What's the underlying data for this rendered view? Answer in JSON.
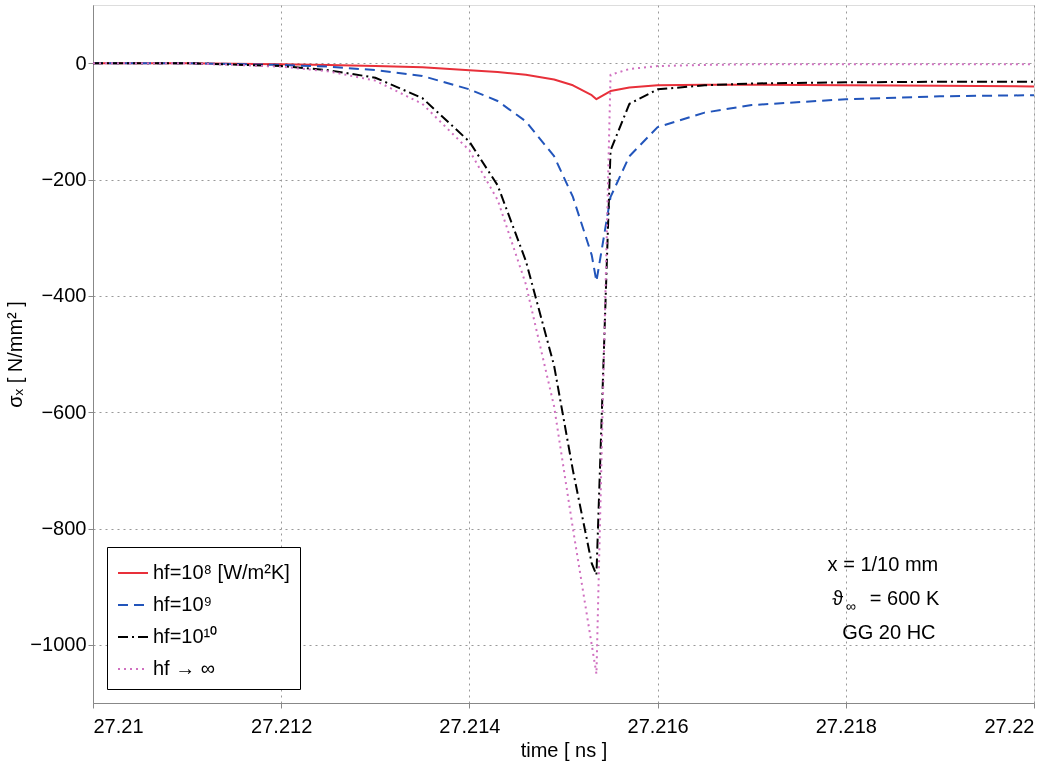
{
  "chart_data": {
    "type": "line",
    "xlabel": "time [ ns ]",
    "ylabel": "σₓ [ N/mm² ]",
    "x": [
      27.21,
      27.211,
      27.212,
      27.2125,
      27.213,
      27.2135,
      27.214,
      27.2143,
      27.2146,
      27.2149,
      27.2151,
      27.2153,
      27.21535,
      27.2155,
      27.2157,
      27.216,
      27.2165,
      27.217,
      27.218,
      27.219,
      27.22
    ],
    "series": [
      {
        "name": "hf=10⁸ [W/m²K]",
        "color": "#e8303a",
        "line_style": "solid",
        "values": [
          0,
          0,
          -2,
          -3,
          -5,
          -7,
          -12,
          -15,
          -20,
          -28,
          -38,
          -55,
          -62,
          -48,
          -42,
          -38,
          -37,
          -37,
          -38,
          -39,
          -40
        ]
      },
      {
        "name": "hf=10⁹",
        "color": "#2255bb",
        "line_style": "dashed",
        "values": [
          0,
          0,
          -3,
          -6,
          -12,
          -22,
          -45,
          -65,
          -100,
          -160,
          -230,
          -330,
          -375,
          -230,
          -160,
          -110,
          -85,
          -72,
          -62,
          -57,
          -55
        ]
      },
      {
        "name": "hf=10¹⁰",
        "color": "#000000",
        "line_style": "dashdot",
        "values": [
          0,
          0,
          -5,
          -12,
          -25,
          -60,
          -135,
          -210,
          -340,
          -520,
          -700,
          -860,
          -880,
          -150,
          -70,
          -45,
          -38,
          -35,
          -33,
          -32,
          -32
        ]
      },
      {
        "name": "hf → ∞",
        "color": "#d070c0",
        "line_style": "dotted",
        "values": [
          0,
          0,
          -6,
          -14,
          -30,
          -70,
          -150,
          -235,
          -380,
          -590,
          -800,
          -1000,
          -1050,
          -20,
          -10,
          -5,
          -3,
          -2,
          -2,
          -2,
          -2
        ]
      }
    ],
    "xlim": [
      27.21,
      27.22
    ],
    "xticks": [
      27.21,
      27.212,
      27.214,
      27.216,
      27.218,
      27.22
    ],
    "ylim": [
      -1100,
      100
    ],
    "yticks": [
      -1000,
      -800,
      -600,
      -400,
      -200,
      0
    ],
    "grid": true,
    "legend": "bottom left",
    "annotations": [
      "x = 1/10 mm",
      "ϑ$_{∞}$ = 600 K",
      "GG 20 HC"
    ]
  }
}
